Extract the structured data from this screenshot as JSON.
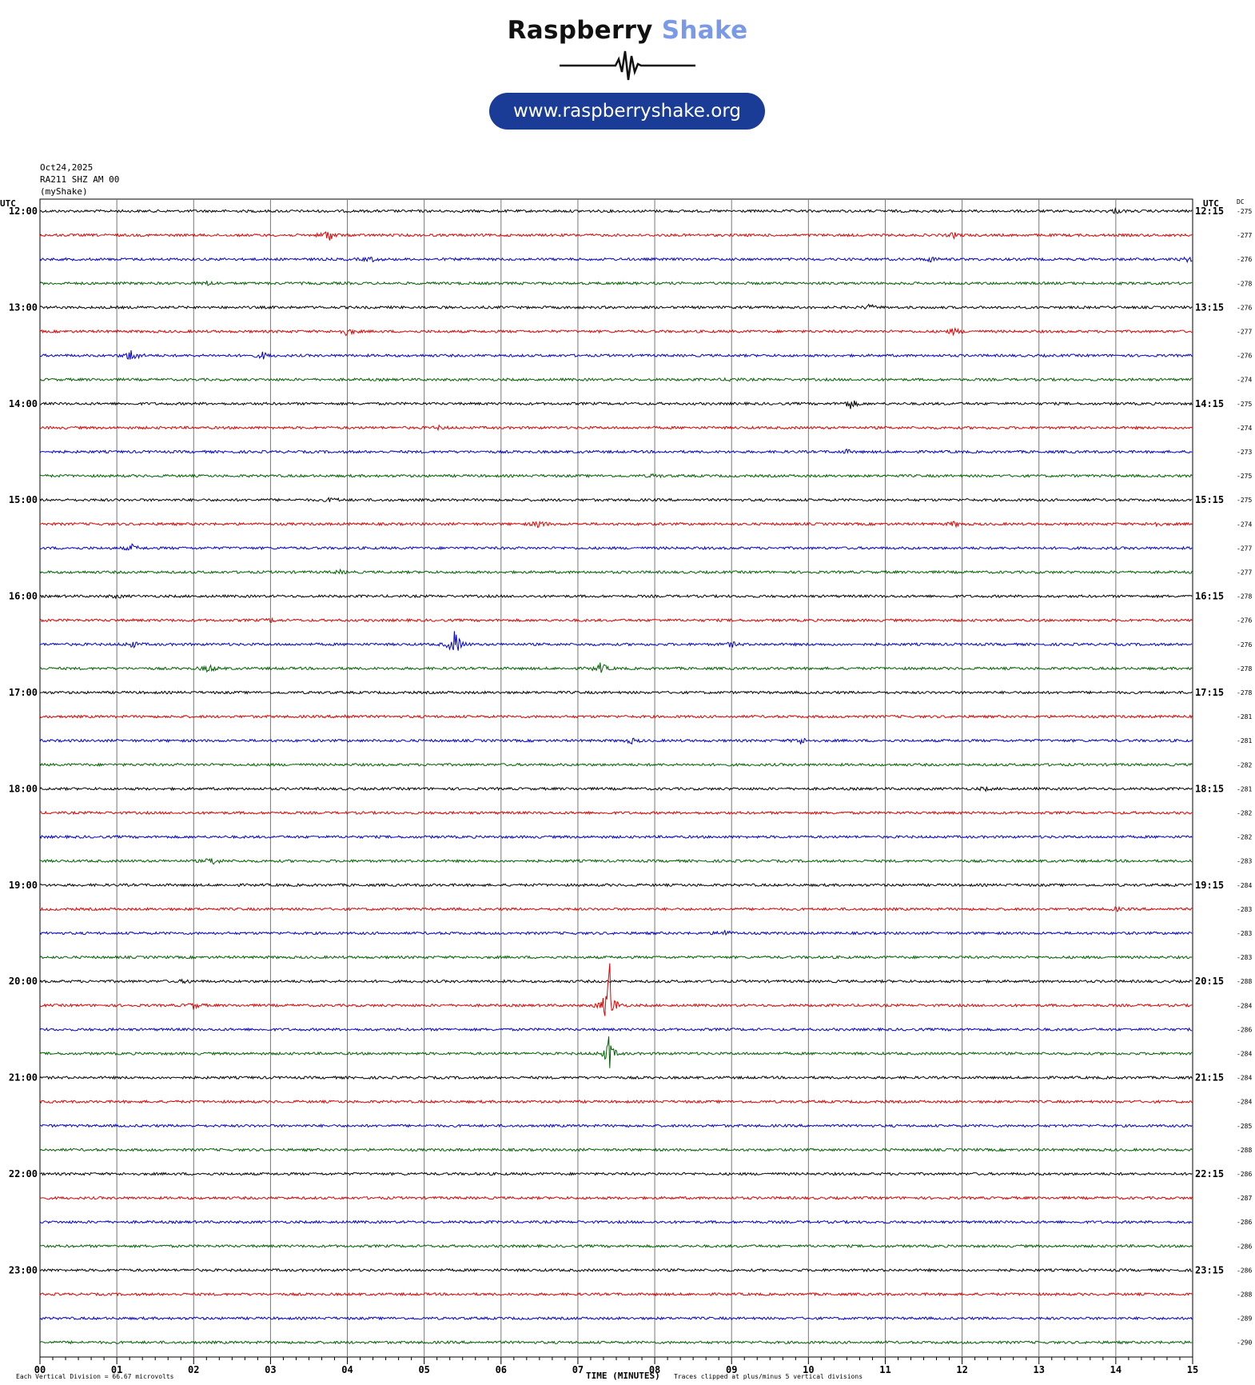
{
  "logo": {
    "word1": "Raspberry",
    "word2": "Shake",
    "url": "www.raspberryshake.org",
    "colors": {
      "dark": "#111111",
      "light_blue": "#7a9ae6",
      "pill": "#1a3b96"
    }
  },
  "header": {
    "date": "Oct24,2025",
    "station": "RA211 SHZ AM 00",
    "source": "(myShake)"
  },
  "chart_data": {
    "type": "line",
    "title": "",
    "xlabel": "TIME (MINUTES)",
    "ylabel": "",
    "left_axis_label": "UTC",
    "right_axis_label": "UTC",
    "dc_label": "DC",
    "xlim": [
      0,
      15
    ],
    "x_ticks": [
      "00",
      "01",
      "02",
      "03",
      "04",
      "05",
      "06",
      "07",
      "08",
      "09",
      "10",
      "11",
      "12",
      "13",
      "14",
      "15"
    ],
    "trace_colors": [
      "#000000",
      "#e00000",
      "#0000d0",
      "#006000"
    ],
    "left_labels": [
      "12:00",
      "13:00",
      "14:00",
      "15:00",
      "16:00",
      "17:00",
      "18:00",
      "19:00",
      "20:00",
      "21:00",
      "22:00",
      "23:00"
    ],
    "right_labels": [
      "12:15",
      "13:15",
      "14:15",
      "15:15",
      "16:15",
      "17:15",
      "18:15",
      "19:15",
      "20:15",
      "21:15",
      "22:15",
      "23:15"
    ],
    "dc_values": [
      "-275",
      "-277",
      "-276",
      "-278",
      "-276",
      "-277",
      "-276",
      "-274",
      "-275",
      "-274",
      "-273",
      "-275",
      "-275",
      "-274",
      "-277",
      "-277",
      "-278",
      "-276",
      "-276",
      "-278",
      "-278",
      "-281",
      "-281",
      "-282",
      "-281",
      "-282",
      "-282",
      "-283",
      "-284",
      "-283",
      "-283",
      "-283",
      "-288",
      "-284",
      "-286",
      "-284",
      "-284",
      "-284",
      "-285",
      "-288",
      "-286",
      "-287",
      "-286",
      "-286",
      "-286",
      "-288",
      "-289",
      "-290"
    ],
    "traces": [
      {
        "events": [
          {
            "t": 14.0,
            "amp": 2.5
          }
        ]
      },
      {
        "events": [
          {
            "t": 3.75,
            "amp": 8
          },
          {
            "t": 11.9,
            "amp": 3
          }
        ]
      },
      {
        "events": [
          {
            "t": 4.3,
            "amp": 3
          },
          {
            "t": 11.6,
            "amp": 3
          },
          {
            "t": 14.95,
            "amp": 3
          }
        ]
      },
      {
        "events": [
          {
            "t": 2.2,
            "amp": 3
          }
        ]
      },
      {
        "events": [
          {
            "t": 10.8,
            "amp": 3
          }
        ]
      },
      {
        "events": [
          {
            "t": 4.0,
            "amp": 5
          },
          {
            "t": 11.9,
            "amp": 4
          }
        ]
      },
      {
        "events": [
          {
            "t": 1.2,
            "amp": 9
          },
          {
            "t": 2.9,
            "amp": 4
          }
        ]
      },
      {
        "events": [
          {
            "t": 9.0,
            "amp": 2
          }
        ]
      },
      {
        "events": [
          {
            "t": 10.55,
            "amp": 6
          }
        ]
      },
      {
        "events": [
          {
            "t": 5.2,
            "amp": 2
          }
        ]
      },
      {
        "events": [
          {
            "t": 10.5,
            "amp": 2
          }
        ]
      },
      {
        "events": [
          {
            "t": 8.0,
            "amp": 2
          }
        ]
      },
      {
        "events": [
          {
            "t": 3.8,
            "amp": 3
          }
        ]
      },
      {
        "events": [
          {
            "t": 6.5,
            "amp": 5
          },
          {
            "t": 11.9,
            "amp": 3
          },
          {
            "t": 14.5,
            "amp": 3
          }
        ]
      },
      {
        "events": [
          {
            "t": 1.2,
            "amp": 4
          }
        ]
      },
      {
        "events": [
          {
            "t": 3.9,
            "amp": 2
          }
        ]
      },
      {
        "events": [
          {
            "t": 1.0,
            "amp": 2
          }
        ]
      },
      {
        "events": [
          {
            "t": 3.0,
            "amp": 2
          }
        ]
      },
      {
        "events": [
          {
            "t": 5.4,
            "amp": 16
          },
          {
            "t": 1.2,
            "amp": 4
          },
          {
            "t": 9.0,
            "amp": 3
          }
        ]
      },
      {
        "events": [
          {
            "t": 7.3,
            "amp": 7
          },
          {
            "t": 2.2,
            "amp": 5
          }
        ]
      },
      {
        "events": []
      },
      {
        "events": [
          {
            "t": 4.0,
            "amp": 2
          }
        ]
      },
      {
        "events": [
          {
            "t": 9.9,
            "amp": 4
          },
          {
            "t": 7.7,
            "amp": 3
          }
        ]
      },
      {
        "events": []
      },
      {
        "events": [
          {
            "t": 12.3,
            "amp": 2
          }
        ]
      },
      {
        "events": []
      },
      {
        "events": []
      },
      {
        "events": [
          {
            "t": 2.25,
            "amp": 5
          }
        ]
      },
      {
        "events": []
      },
      {
        "events": [
          {
            "t": 14.0,
            "amp": 2
          }
        ]
      },
      {
        "events": [
          {
            "t": 8.9,
            "amp": 4
          }
        ]
      },
      {
        "events": []
      },
      {
        "events": [
          {
            "t": 1.9,
            "amp": 2
          }
        ]
      },
      {
        "events": [
          {
            "t": 7.4,
            "amp": 30
          },
          {
            "t": 2.0,
            "amp": 4
          }
        ]
      },
      {
        "events": []
      },
      {
        "events": [
          {
            "t": 7.4,
            "amp": 14
          }
        ]
      },
      {
        "events": []
      },
      {
        "events": []
      },
      {
        "events": []
      },
      {
        "events": []
      },
      {
        "events": []
      },
      {
        "events": []
      },
      {
        "events": []
      },
      {
        "events": []
      },
      {
        "events": []
      },
      {
        "events": []
      },
      {
        "events": []
      },
      {
        "events": []
      }
    ]
  },
  "footer": {
    "scale_note": "Each Vertical Division =   66.67 microvolts",
    "clip_note": "Traces clipped at plus/minus 5 vertical divisions"
  }
}
